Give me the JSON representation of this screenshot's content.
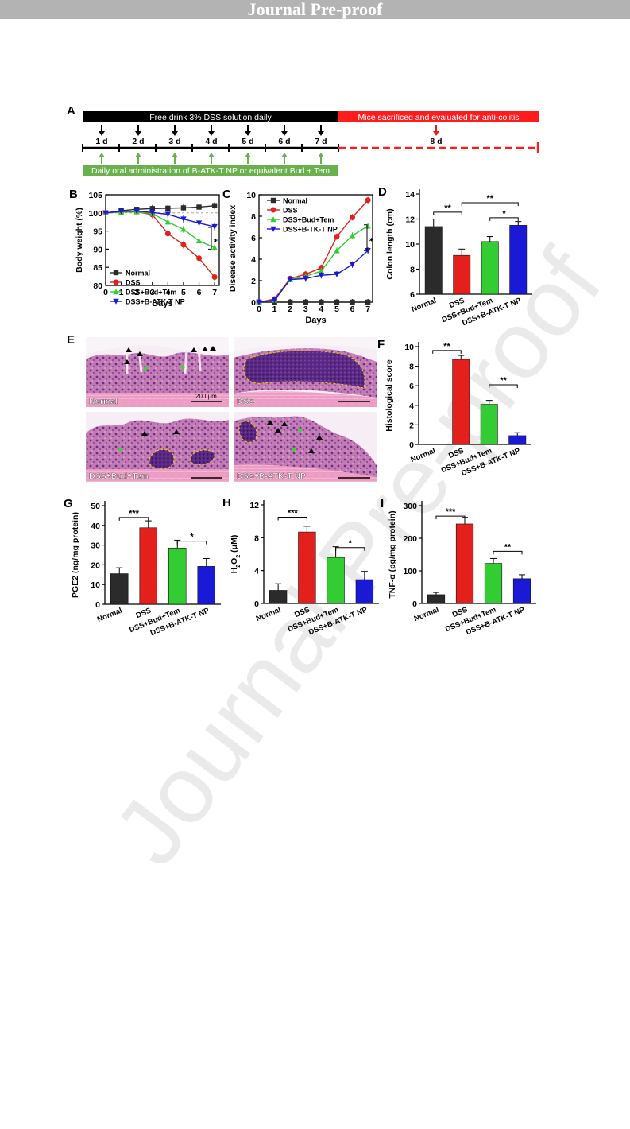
{
  "banner": {
    "text": "Journal Pre-proof"
  },
  "watermark": {
    "text": "Journal Pre-proof"
  },
  "timeline": {
    "panel": "A",
    "black_bar": "Free drink 3% DSS solution daily",
    "red_bar": "Mice sacrificed and evaluated for anti-colitis",
    "green_bar": "Daily oral administration of B-ATK-T NP or equivalent Bud + Tem",
    "days": [
      "1 d",
      "2 d",
      "3 d",
      "4 d",
      "5 d",
      "6 d",
      "7 d"
    ],
    "final_day": "8 d"
  },
  "histology": {
    "panel": "E",
    "images": [
      "Normal",
      "DSS",
      "DSS+Bud+Tem",
      "DSS+B-ATK-T NP"
    ],
    "scale_bar": "200 μm"
  },
  "colors": {
    "normal": "#2b2b2b",
    "dss": "#e4201c",
    "bud": "#33cc33",
    "atk": "#1a1ad6"
  },
  "chart_data": [
    {
      "panel": "B",
      "type": "line",
      "xlabel": "Days",
      "ylabel": "Body weight (%)",
      "x": [
        0,
        1,
        2,
        3,
        4,
        5,
        6,
        7
      ],
      "xlim": [
        0,
        7.3
      ],
      "ylim": [
        80,
        105
      ],
      "yticks": [
        80,
        85,
        90,
        95,
        100,
        105
      ],
      "series": [
        {
          "name": "Normal",
          "values": [
            100,
            100.6,
            101,
            101.2,
            101.3,
            101.4,
            101.6,
            102
          ]
        },
        {
          "name": "DSS",
          "values": [
            100,
            100.2,
            100.3,
            99.5,
            94.3,
            91.2,
            87.5,
            82.3
          ]
        },
        {
          "name": "DSS+Bud+Tem",
          "values": [
            100,
            100.2,
            100.3,
            99.8,
            97.5,
            95.5,
            92.3,
            90.4
          ]
        },
        {
          "name": "DSS+B-ATK-T NP",
          "values": [
            100,
            100.4,
            100.5,
            100.1,
            99.6,
            98.3,
            97.2,
            96.2
          ]
        }
      ],
      "annotation": "*"
    },
    {
      "panel": "C",
      "type": "line",
      "xlabel": "Days",
      "ylabel": "Disease activity index",
      "x": [
        0,
        1,
        2,
        3,
        4,
        5,
        6,
        7
      ],
      "xlim": [
        0,
        7.3
      ],
      "ylim": [
        0,
        10
      ],
      "yticks": [
        0,
        2,
        4,
        6,
        8,
        10
      ],
      "series": [
        {
          "name": "Normal",
          "values": [
            0,
            0,
            0,
            0,
            0,
            0,
            0,
            0
          ]
        },
        {
          "name": "DSS",
          "values": [
            0,
            0.3,
            2.2,
            2.6,
            3.2,
            6.1,
            7.9,
            9.5
          ]
        },
        {
          "name": "DSS+Bud+Tem",
          "values": [
            0,
            0.2,
            2.1,
            2.4,
            2.9,
            4.8,
            6.2,
            7.1
          ]
        },
        {
          "name": "DSS+B-TK-T NP",
          "values": [
            0,
            0.2,
            2.1,
            2.2,
            2.5,
            2.6,
            3.5,
            4.8
          ]
        }
      ],
      "annotation": "*"
    },
    {
      "panel": "D",
      "type": "bar",
      "ylabel": "Colon length (cm)",
      "categories": [
        "Normal",
        "DSS",
        "DSS+Bud+Tem",
        "DSS+B-ATK-T NP"
      ],
      "values": [
        11.4,
        9.1,
        10.2,
        11.5
      ],
      "errors": [
        0.6,
        0.5,
        0.4,
        0.3
      ],
      "ylim": [
        6,
        14
      ],
      "yticks": [
        6,
        8,
        10,
        12,
        14
      ],
      "significance": [
        "**",
        "**",
        "*"
      ]
    },
    {
      "panel": "F",
      "type": "bar",
      "ylabel": "Histological score",
      "categories": [
        "Normal",
        "DSS",
        "DSS+Bud+Tem",
        "DSS+B-ATK-T NP"
      ],
      "values": [
        0,
        8.7,
        4.1,
        0.9
      ],
      "errors": [
        0,
        0.4,
        0.4,
        0.3
      ],
      "ylim": [
        0,
        10
      ],
      "yticks": [
        0,
        2,
        4,
        6,
        8,
        10
      ],
      "significance": [
        "**",
        "**"
      ]
    },
    {
      "panel": "G",
      "type": "bar",
      "ylabel": "PGE2 (ng/mg protein)",
      "categories": [
        "Normal",
        "DSS",
        "DSS+Bud+Tem",
        "DSS+B-ATK-T NP"
      ],
      "values": [
        15.5,
        38.8,
        28.5,
        19.2
      ],
      "errors": [
        3,
        3.5,
        4,
        4
      ],
      "ylim": [
        0,
        50
      ],
      "yticks": [
        0,
        10,
        20,
        30,
        40,
        50
      ],
      "significance": [
        "***",
        "*"
      ]
    },
    {
      "panel": "H",
      "type": "bar",
      "ylabel": "H2O2 (μM)",
      "categories": [
        "Normal",
        "DSS",
        "DSS+Bud+Tem",
        "DSS+B-ATK-T NP"
      ],
      "values": [
        1.6,
        8.7,
        5.6,
        2.9
      ],
      "errors": [
        0.8,
        0.7,
        1.3,
        1.0
      ],
      "ylim": [
        0,
        12
      ],
      "yticks": [
        0,
        4,
        8,
        12
      ],
      "significance": [
        "***",
        "*"
      ]
    },
    {
      "panel": "I",
      "type": "bar",
      "ylabel": "TNF-α (pg/mg protein)",
      "categories": [
        "Normal",
        "DSS",
        "DSS+Bud+Tem",
        "DSS+B-ATK-T NP"
      ],
      "values": [
        27,
        244,
        123,
        76
      ],
      "errors": [
        7,
        20,
        15,
        12
      ],
      "ylim": [
        0,
        300
      ],
      "yticks": [
        0,
        100,
        200,
        300
      ],
      "significance": [
        "***",
        "**"
      ]
    }
  ]
}
